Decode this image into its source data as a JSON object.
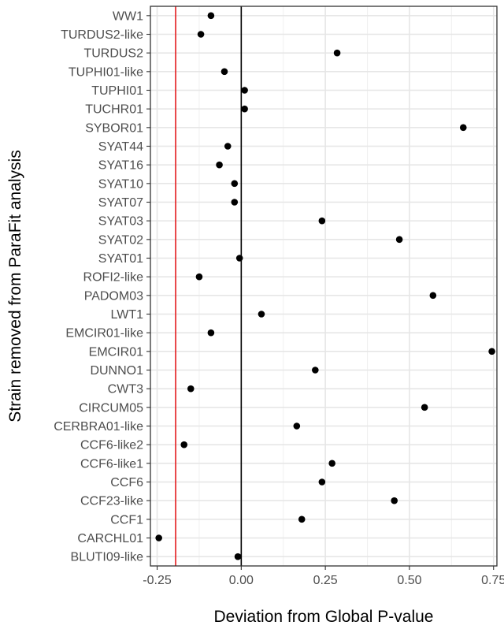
{
  "chart_data": {
    "type": "scatter",
    "title": "",
    "xlabel": "Deviation from Global P-value",
    "ylabel": "Strain removed from ParaFit analysis",
    "xlim": [
      -0.27,
      0.76
    ],
    "x_ticks": [
      -0.25,
      0.0,
      0.25,
      0.5,
      0.75
    ],
    "x_tick_labels": [
      "-0.25",
      "0.00",
      "0.25",
      "0.50",
      "0.75"
    ],
    "grid": true,
    "legend": "none",
    "reference_lines": {
      "zero_line": {
        "x": 0.0,
        "color": "#000000"
      },
      "threshold_line": {
        "x": -0.195,
        "color": "#e41a1c"
      }
    },
    "highlight_color": "#e41a1c",
    "point_color": "#000000",
    "points": [
      {
        "label": "WW1",
        "x": -0.09
      },
      {
        "label": "TURDUS2-like",
        "x": -0.12
      },
      {
        "label": "TURDUS2",
        "x": 0.285
      },
      {
        "label": "TUPHI01-like",
        "x": -0.05
      },
      {
        "label": "TUPHI01",
        "x": 0.01
      },
      {
        "label": "TUCHR01",
        "x": 0.01
      },
      {
        "label": "SYBOR01",
        "x": 0.66
      },
      {
        "label": "SYAT44",
        "x": -0.04
      },
      {
        "label": "SYAT16",
        "x": -0.065
      },
      {
        "label": "SYAT10",
        "x": -0.02
      },
      {
        "label": "SYAT07",
        "x": -0.02
      },
      {
        "label": "SYAT03",
        "x": 0.24
      },
      {
        "label": "SYAT02",
        "x": 0.47
      },
      {
        "label": "SYAT01",
        "x": -0.005
      },
      {
        "label": "ROFI2-like",
        "x": -0.125
      },
      {
        "label": "PADOM03",
        "x": 0.57
      },
      {
        "label": "LWT1",
        "x": 0.06
      },
      {
        "label": "EMCIR01-like",
        "x": -0.09
      },
      {
        "label": "EMCIR01",
        "x": 0.745
      },
      {
        "label": "DUNNO1",
        "x": 0.22
      },
      {
        "label": "CWT3",
        "x": -0.15
      },
      {
        "label": "CIRCUM05",
        "x": 0.545
      },
      {
        "label": "CERBRA01-like",
        "x": 0.165
      },
      {
        "label": "CCF6-like2",
        "x": -0.17
      },
      {
        "label": "CCF6-like1",
        "x": 0.27
      },
      {
        "label": "CCF6",
        "x": 0.24
      },
      {
        "label": "CCF23-like",
        "x": 0.455
      },
      {
        "label": "CCF1",
        "x": 0.18
      },
      {
        "label": "CARCHL01",
        "x": -0.245,
        "highlight": true
      },
      {
        "label": "BLUTI09-like",
        "x": -0.01
      }
    ]
  }
}
